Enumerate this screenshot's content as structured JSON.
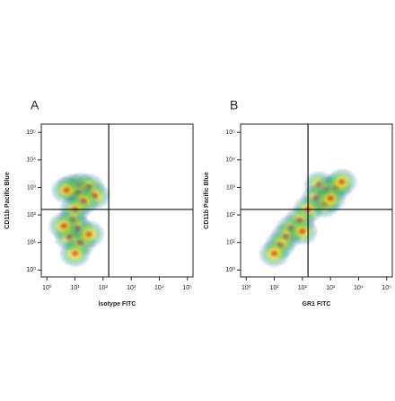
{
  "chart_data": [
    {
      "type": "density",
      "label": "A",
      "xlabel": "Isotype FITC",
      "ylabel": "CD11b Pacific Blue",
      "xlim": [
        -0.2,
        5.2
      ],
      "ylim": [
        -0.25,
        5.3
      ],
      "log": true,
      "xticks": [
        {
          "value": 0,
          "label": "10⁰"
        },
        {
          "value": 1,
          "label": "10¹"
        },
        {
          "value": 2,
          "label": "10²"
        },
        {
          "value": 3,
          "label": "10³"
        },
        {
          "value": 4,
          "label": "10⁴"
        },
        {
          "value": 5,
          "label": "10⁵"
        }
      ],
      "yticks": [
        {
          "value": 0,
          "label": "10⁰"
        },
        {
          "value": 1,
          "label": "10¹"
        },
        {
          "value": 2,
          "label": "10²"
        },
        {
          "value": 3,
          "label": "10³"
        },
        {
          "value": 4,
          "label": "10⁴"
        },
        {
          "value": 5,
          "label": "10⁵"
        }
      ],
      "quadrant_x": 2.2,
      "quadrant_y": 2.2,
      "x": [
        0.9,
        1.2,
        1.5,
        1.1,
        0.7,
        1.7,
        1.3,
        1.0,
        0.9,
        1.1,
        0.8,
        1.2,
        1.0,
        1.5,
        0.6
      ],
      "values": [
        3.0,
        3.05,
        3.0,
        2.8,
        2.9,
        2.7,
        2.5,
        2.2,
        1.8,
        1.5,
        1.2,
        1.0,
        0.6,
        1.3,
        1.6
      ]
    },
    {
      "type": "density",
      "label": "B",
      "xlabel": "GR1 FITC",
      "ylabel": "CD11b Pacific Blue",
      "xlim": [
        -0.2,
        5.2
      ],
      "ylim": [
        -0.25,
        5.3
      ],
      "log": true,
      "xticks": [
        {
          "value": 0,
          "label": "10⁰"
        },
        {
          "value": 1,
          "label": "10¹"
        },
        {
          "value": 2,
          "label": "10²"
        },
        {
          "value": 3,
          "label": "10³"
        },
        {
          "value": 4,
          "label": "10⁴"
        },
        {
          "value": 5,
          "label": "10⁵"
        }
      ],
      "yticks": [
        {
          "value": 0,
          "label": "10⁰"
        },
        {
          "value": 1,
          "label": "10¹"
        },
        {
          "value": 2,
          "label": "10²"
        },
        {
          "value": 3,
          "label": "10³"
        },
        {
          "value": 4,
          "label": "10⁴"
        },
        {
          "value": 5,
          "label": "10⁵"
        }
      ],
      "quadrant_x": 2.2,
      "quadrant_y": 2.2,
      "x": [
        2.6,
        2.9,
        3.2,
        2.5,
        2.8,
        3.0,
        2.2,
        1.9,
        1.6,
        1.4,
        1.2,
        1.0,
        2.0,
        3.4
      ],
      "values": [
        3.1,
        2.9,
        3.0,
        2.6,
        2.4,
        2.6,
        2.2,
        1.8,
        1.5,
        1.2,
        0.9,
        0.6,
        1.4,
        3.2
      ]
    }
  ]
}
